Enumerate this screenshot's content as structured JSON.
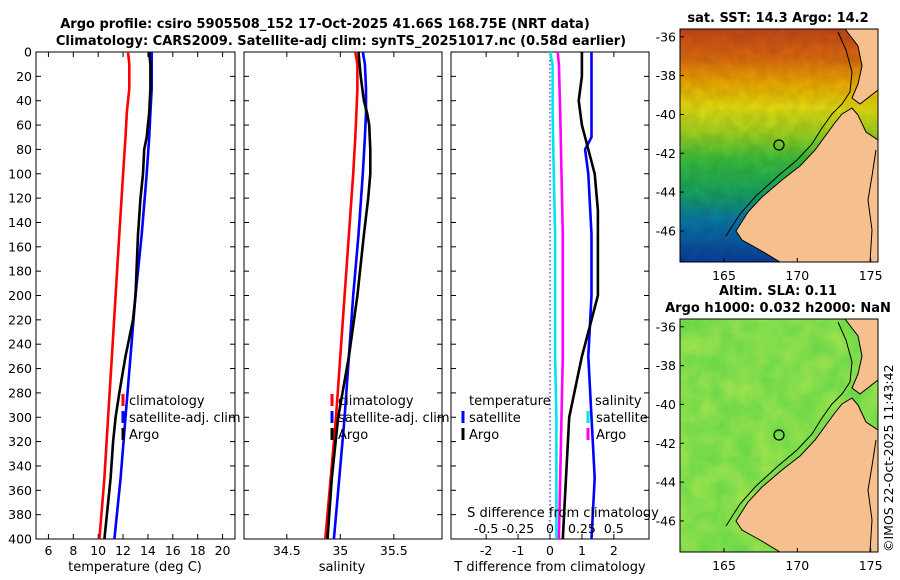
{
  "title_line1": "Argo profile: csiro 5905508_152 17-Oct-2025 41.66S 168.75E (NRT data)",
  "title_line2": "Climatology: CARS2009. Satellite-adj clim: synTS_20251017.nc (0.58d earlier)",
  "credit": "©IMOS 22-Oct-2025 11:43:42",
  "colors": {
    "climatology": "#ff0000",
    "satellite": "#0000ff",
    "argo": "#000000",
    "cyan": "#00e5ee",
    "magenta": "#ff00ff"
  },
  "chart_data": [
    {
      "type": "line",
      "name": "temperature-profile",
      "xlabel": "temperature (deg C)",
      "ylabel": "depth",
      "xlim": [
        5,
        21
      ],
      "ylim": [
        400,
        0
      ],
      "xticks": [
        6,
        8,
        10,
        12,
        14,
        16,
        18,
        20
      ],
      "yticks": [
        0,
        20,
        40,
        60,
        80,
        100,
        120,
        140,
        160,
        180,
        200,
        220,
        240,
        260,
        280,
        300,
        320,
        340,
        360,
        380,
        400
      ],
      "legend": {
        "position": "lower-right",
        "entries": [
          "climatology",
          "satellite-adj. clim",
          "Argo"
        ]
      },
      "series": [
        {
          "name": "climatology",
          "color": "#ff0000",
          "depth": [
            0,
            10,
            30,
            50,
            70,
            100,
            150,
            200,
            250,
            300,
            350,
            400
          ],
          "values": [
            12.4,
            12.5,
            12.5,
            12.3,
            12.2,
            12.0,
            11.7,
            11.4,
            11.1,
            10.8,
            10.5,
            10.1
          ]
        },
        {
          "name": "satellite-adj. clim",
          "color": "#0000ff",
          "depth": [
            0,
            10,
            30,
            50,
            70,
            100,
            150,
            200,
            250,
            300,
            350,
            400
          ],
          "values": [
            14.3,
            14.3,
            14.3,
            14.2,
            14.1,
            13.9,
            13.5,
            13.0,
            12.6,
            12.2,
            11.8,
            11.3
          ]
        },
        {
          "name": "Argo",
          "color": "#000000",
          "depth": [
            0,
            10,
            30,
            50,
            60,
            70,
            80,
            100,
            120,
            150,
            200,
            220,
            250,
            280,
            300,
            320,
            350,
            380,
            400
          ],
          "values": [
            14.1,
            14.2,
            14.2,
            14.1,
            14.0,
            13.9,
            13.7,
            13.6,
            13.4,
            13.2,
            13.0,
            12.8,
            12.2,
            11.7,
            11.4,
            11.2,
            11.0,
            10.7,
            10.5
          ]
        }
      ]
    },
    {
      "type": "line",
      "name": "salinity-profile",
      "xlabel": "salinity",
      "ylabel": "depth",
      "xlim": [
        34.1,
        35.95
      ],
      "ylim": [
        400,
        0
      ],
      "xticks": [
        34.5,
        35,
        35.5
      ],
      "xticklabels": [
        "34.5",
        "35",
        "35.5"
      ],
      "legend": {
        "position": "lower-right",
        "entries": [
          "climatology",
          "satellite-adj. clim",
          "Argo"
        ]
      },
      "series": [
        {
          "name": "climatology",
          "color": "#ff0000",
          "depth": [
            0,
            10,
            30,
            50,
            70,
            100,
            150,
            200,
            250,
            300,
            350,
            400
          ],
          "values": [
            35.14,
            35.16,
            35.16,
            35.15,
            35.14,
            35.12,
            35.08,
            35.04,
            35.0,
            34.96,
            34.91,
            34.86
          ]
        },
        {
          "name": "satellite-adj. clim",
          "color": "#0000ff",
          "depth": [
            0,
            10,
            30,
            50,
            70,
            100,
            150,
            200,
            250,
            300,
            350,
            400
          ],
          "values": [
            35.21,
            35.23,
            35.24,
            35.24,
            35.23,
            35.21,
            35.17,
            35.12,
            35.08,
            35.04,
            34.99,
            34.94
          ]
        },
        {
          "name": "Argo",
          "color": "#000000",
          "depth": [
            0,
            10,
            20,
            40,
            50,
            60,
            80,
            100,
            120,
            150,
            200,
            250,
            300,
            350,
            400
          ],
          "values": [
            35.17,
            35.18,
            35.19,
            35.22,
            35.25,
            35.27,
            35.28,
            35.28,
            35.26,
            35.22,
            35.16,
            35.08,
            34.98,
            34.92,
            34.88
          ]
        }
      ]
    },
    {
      "type": "line",
      "name": "difference-from-climatology",
      "xlabel": "T difference from climatology",
      "top_axis_label": "S difference from climatology",
      "xlim": [
        -3.1,
        3.1
      ],
      "ylim": [
        400,
        0
      ],
      "xticks": [
        -2,
        -1,
        0,
        1,
        2
      ],
      "top_ticks": [
        -0.5,
        -0.25,
        0,
        0.25,
        0.5
      ],
      "top_ticklabels": [
        "-0.5",
        "-0.25",
        "0",
        "0.25",
        "0.5"
      ],
      "legend_left": {
        "title": "temperature",
        "entries": [
          "satellite",
          "Argo"
        ]
      },
      "legend_right": {
        "title": "salinity",
        "entries": [
          "satellite",
          "Argo"
        ]
      },
      "series": [
        {
          "name": "temperature satellite",
          "color": "#0000ff",
          "depth": [
            0,
            10,
            30,
            50,
            70,
            80,
            100,
            150,
            200,
            250,
            300,
            350,
            400
          ],
          "values": [
            1.3,
            1.3,
            1.3,
            1.3,
            1.3,
            1.1,
            1.2,
            1.3,
            1.3,
            1.2,
            1.3,
            1.4,
            1.3
          ]
        },
        {
          "name": "temperature Argo",
          "color": "#000000",
          "depth": [
            0,
            10,
            20,
            40,
            60,
            80,
            100,
            130,
            150,
            200,
            220,
            250,
            300,
            350,
            400
          ],
          "values": [
            1.0,
            1.0,
            1.0,
            0.9,
            1.0,
            1.2,
            1.4,
            1.5,
            1.5,
            1.5,
            1.3,
            1.0,
            0.6,
            0.5,
            0.4
          ]
        },
        {
          "name": "salinity satellite",
          "color": "#00e5ee",
          "depth": [
            0,
            10,
            50,
            100,
            150,
            200,
            250,
            300,
            350,
            400
          ],
          "values": [
            0.0,
            0.02,
            0.02,
            0.03,
            0.04,
            0.04,
            0.04,
            0.05,
            0.05,
            0.05
          ]
        },
        {
          "name": "salinity Argo",
          "color": "#ff00ff",
          "depth": [
            0,
            10,
            50,
            100,
            150,
            200,
            250,
            300,
            350,
            400
          ],
          "values": [
            0.06,
            0.07,
            0.08,
            0.09,
            0.1,
            0.1,
            0.1,
            0.09,
            0.08,
            0.07
          ]
        }
      ]
    },
    {
      "type": "heatmap",
      "name": "sst-map",
      "title": "sat. SST: 14.3 Argo: 14.2",
      "xlim": [
        162,
        175.5
      ],
      "ylim": [
        -47.6,
        -35.6
      ],
      "xticks": [
        165,
        170,
        175
      ],
      "yticks": [
        -36,
        -38,
        -40,
        -42,
        -44,
        -46
      ],
      "argo_position": {
        "lon": 168.75,
        "lat": -41.66
      }
    },
    {
      "type": "heatmap",
      "name": "sla-map",
      "title": "Altim. SLA: 0.11",
      "subtitle": "Argo h1000: 0.032 h2000: NaN",
      "xlim": [
        162,
        175.5
      ],
      "ylim": [
        -47.6,
        -35.6
      ],
      "xticks": [
        165,
        170,
        175
      ],
      "yticks": [
        -36,
        -38,
        -40,
        -42,
        -44,
        -46
      ],
      "argo_position": {
        "lon": 168.75,
        "lat": -41.66
      }
    }
  ]
}
